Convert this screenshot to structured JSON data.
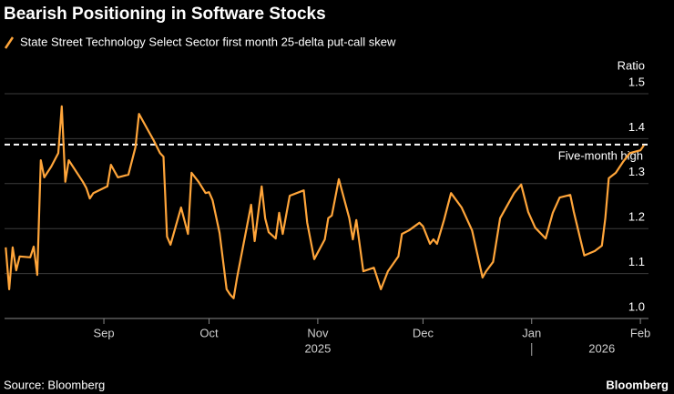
{
  "chart_data": {
    "type": "line",
    "title": "Bearish Positioning in Software Stocks",
    "y_axis_label": "Ratio",
    "source": "Source: Bloomberg",
    "brand": "Bloomberg",
    "x_year_labels": [
      {
        "value": 92,
        "label": "2025"
      },
      {
        "value": 173,
        "label": "2026"
      }
    ],
    "x_year_divider": 153,
    "reference_line": {
      "value": 1.387,
      "label": "Five-month high",
      "color": "#ffffff"
    },
    "xlim": [
      2,
      186
    ],
    "xticks": [
      {
        "value": 31,
        "label": "Sep"
      },
      {
        "value": 61,
        "label": "Oct"
      },
      {
        "value": 92,
        "label": "Nov"
      },
      {
        "value": 122,
        "label": "Dec"
      },
      {
        "value": 153,
        "label": "Jan"
      },
      {
        "value": 184,
        "label": "Feb"
      }
    ],
    "ylim": [
      1.0,
      1.5
    ],
    "yticks": [
      {
        "value": 1.0,
        "label": "1.0"
      },
      1.1,
      1.2,
      1.3,
      1.4,
      1.5
    ],
    "grid": true,
    "x": [
      3,
      4,
      5,
      6,
      7,
      10,
      11,
      12,
      13,
      14,
      16,
      18,
      19,
      20,
      21,
      25,
      26,
      27,
      28,
      32,
      33,
      35,
      38,
      40,
      41,
      44,
      45,
      47,
      48,
      49,
      50,
      53,
      55,
      56,
      58,
      60,
      61,
      62,
      64,
      66,
      67,
      68,
      69,
      73,
      74,
      76,
      77,
      78,
      80,
      81,
      82,
      84,
      88,
      89,
      91,
      94,
      95,
      96,
      98,
      101,
      102,
      103,
      105,
      108,
      110,
      112,
      115,
      116,
      118,
      121,
      122,
      124,
      125,
      126,
      128,
      130,
      133,
      136,
      139,
      140,
      142,
      144,
      148,
      150,
      152,
      154,
      157,
      159,
      161,
      164,
      165,
      168,
      171,
      173,
      174,
      175,
      177,
      179,
      181,
      184,
      185
    ],
    "series": [
      {
        "name": "State Street Technology Select Sector first month 25-delta put-call skew",
        "color": "#ffa53a",
        "values": [
          1.158,
          1.065,
          1.158,
          1.107,
          1.138,
          1.136,
          1.16,
          1.097,
          1.352,
          1.314,
          1.338,
          1.368,
          1.472,
          1.304,
          1.352,
          1.304,
          1.29,
          1.267,
          1.279,
          1.294,
          1.342,
          1.314,
          1.32,
          1.381,
          1.455,
          1.413,
          1.399,
          1.368,
          1.36,
          1.182,
          1.164,
          1.247,
          1.188,
          1.324,
          1.304,
          1.279,
          1.281,
          1.263,
          1.19,
          1.065,
          1.053,
          1.045,
          1.091,
          1.253,
          1.172,
          1.294,
          1.223,
          1.192,
          1.178,
          1.235,
          1.188,
          1.273,
          1.285,
          1.213,
          1.132,
          1.176,
          1.223,
          1.229,
          1.31,
          1.223,
          1.176,
          1.219,
          1.105,
          1.113,
          1.065,
          1.105,
          1.138,
          1.188,
          1.196,
          1.213,
          1.205,
          1.166,
          1.176,
          1.166,
          1.219,
          1.279,
          1.247,
          1.196,
          1.091,
          1.105,
          1.126,
          1.223,
          1.279,
          1.298,
          1.237,
          1.202,
          1.178,
          1.235,
          1.269,
          1.275,
          1.237,
          1.14,
          1.15,
          1.162,
          1.223,
          1.312,
          1.324,
          1.348,
          1.368,
          1.374,
          1.385
        ]
      }
    ]
  }
}
